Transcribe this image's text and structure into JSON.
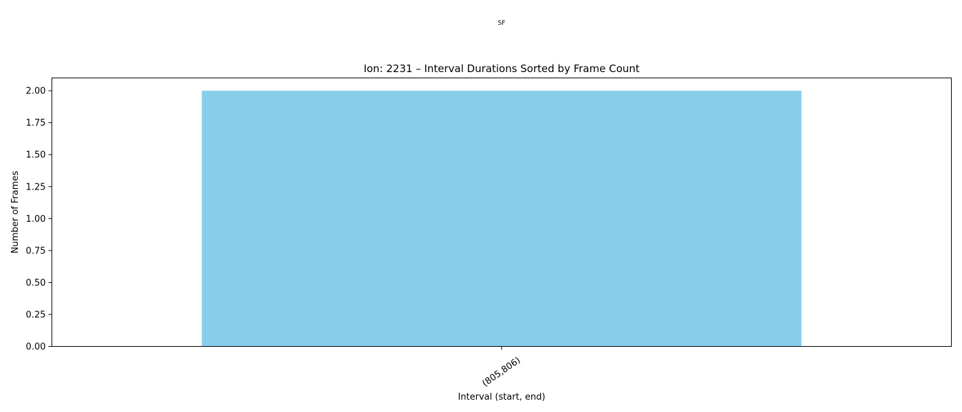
{
  "figure": {
    "suptitle": "SF"
  },
  "chart_data": {
    "type": "bar",
    "title": "Ion: 2231 – Interval Durations Sorted by Frame Count",
    "xlabel": "Interval (start, end)",
    "ylabel": "Number of Frames",
    "categories": [
      "(805,806)"
    ],
    "values": [
      2
    ],
    "ylim": [
      0,
      2.1
    ],
    "yticks": [
      "0.00",
      "0.25",
      "0.50",
      "0.75",
      "1.00",
      "1.25",
      "1.50",
      "1.75",
      "2.00"
    ],
    "grid": false,
    "legend": "none",
    "bar_color": "#87ceeb"
  }
}
